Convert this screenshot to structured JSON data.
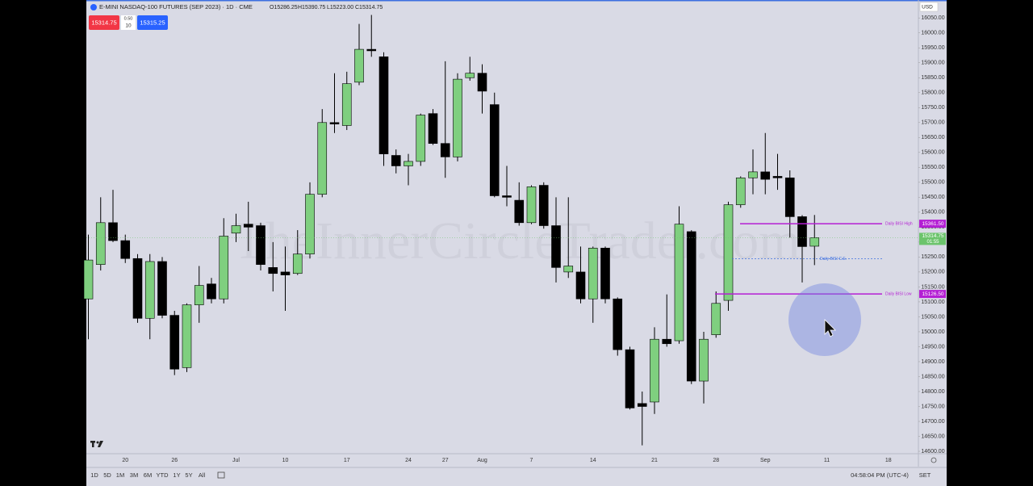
{
  "header": {
    "symbol": "E-MINI NASDAQ-100 FUTURES (SEP 2023) · 1D · CME",
    "ohlc": [
      "O15286.25",
      "H15390.75",
      "L15223.00",
      "C15314.75"
    ],
    "sell": "15314.75",
    "spread": "0.50",
    "qty": "10",
    "buy": "15315.25",
    "currency": "USD"
  },
  "watermark": "TheInnerCircleTrader.com",
  "toolbar": {
    "ranges": [
      "1D",
      "5D",
      "1M",
      "3M",
      "6M",
      "YTD",
      "1Y",
      "5Y",
      "All"
    ],
    "time": "04:58:04 PM (UTC-4)",
    "settings": "SET"
  },
  "chart_data": {
    "type": "candlestick",
    "categories": [
      null,
      null,
      null,
      "20",
      null,
      null,
      null,
      "26",
      null,
      null,
      null,
      null,
      "Jul",
      null,
      null,
      null,
      "10",
      null,
      null,
      null,
      null,
      "17",
      null,
      null,
      null,
      null,
      "24",
      null,
      null,
      "27",
      null,
      null,
      "Aug",
      null,
      null,
      null,
      "7",
      null,
      null,
      null,
      null,
      "14",
      null,
      null,
      null,
      null,
      "21",
      null,
      null,
      null,
      null,
      "28",
      null,
      null,
      null,
      "Sep",
      null,
      null,
      null,
      null,
      "11",
      null,
      null,
      null,
      null,
      "18"
    ],
    "open": [
      15110,
      15225,
      15365,
      15305,
      15245,
      15045,
      15235,
      15055,
      14880,
      15090,
      15160,
      15110,
      15330,
      15360,
      15355,
      15215,
      15200,
      15195,
      15260,
      15460,
      15700,
      15690,
      15835,
      15945,
      15920,
      15590,
      15555,
      15570,
      15730,
      15630,
      15585,
      15850,
      15865,
      15760,
      15455,
      15440,
      15365,
      15490,
      15355,
      15200,
      15200,
      15110,
      15280,
      15110,
      14940,
      14760,
      14765,
      14975,
      14970,
      15335,
      14835,
      14990,
      15105,
      15425,
      15515,
      15535,
      15520,
      15515,
      15385,
      15286.25,
      null,
      null,
      null,
      null,
      null,
      null
    ],
    "high": [
      15325,
      15450,
      15475,
      15325,
      15260,
      15260,
      15250,
      15070,
      15095,
      15220,
      15180,
      15380,
      15395,
      15435,
      15365,
      15300,
      15285,
      15340,
      15500,
      15745,
      15865,
      15870,
      16030,
      16060,
      15935,
      15610,
      15595,
      15730,
      15745,
      15905,
      15865,
      15920,
      15895,
      15800,
      15555,
      15500,
      15490,
      15500,
      15450,
      15450,
      15285,
      15285,
      15285,
      15115,
      14950,
      14800,
      15015,
      15125,
      15420,
      15340,
      15000,
      15135,
      15435,
      15520,
      15610,
      15665,
      15595,
      15540,
      15390,
      15390.75,
      null,
      null,
      null,
      null,
      null,
      null
    ],
    "low": [
      14975,
      15205,
      15300,
      15230,
      15030,
      14975,
      15045,
      14855,
      14865,
      15030,
      15095,
      15095,
      15300,
      15270,
      15205,
      15135,
      15070,
      15190,
      15245,
      15450,
      15665,
      15675,
      15825,
      15920,
      15555,
      15530,
      15490,
      15555,
      15625,
      15515,
      15570,
      15840,
      15730,
      15450,
      15420,
      15355,
      15360,
      15345,
      15165,
      15180,
      15095,
      15030,
      15095,
      14920,
      14740,
      14620,
      14725,
      14950,
      14960,
      14825,
      14760,
      14980,
      15070,
      15415,
      15460,
      15460,
      15475,
      15315,
      15165,
      15223,
      null,
      null,
      null,
      null,
      null,
      null
    ],
    "close": [
      15240,
      15365,
      15305,
      15245,
      15045,
      15235,
      15055,
      14875,
      15090,
      15155,
      15110,
      15320,
      15355,
      15350,
      15225,
      15195,
      15190,
      15260,
      15460,
      15700,
      15695,
      15830,
      15945,
      15940,
      15595,
      15555,
      15570,
      15725,
      15630,
      15585,
      15845,
      15865,
      15805,
      15455,
      15450,
      15365,
      15485,
      15355,
      15215,
      15220,
      15110,
      15280,
      15110,
      14940,
      14745,
      14750,
      14975,
      14960,
      15360,
      14835,
      14975,
      15095,
      15425,
      15515,
      15535,
      15510,
      15515,
      15385,
      15285,
      15314.75,
      null,
      null,
      null,
      null,
      null,
      null
    ],
    "up_color": "#7fcf7f",
    "down_color": "#000000",
    "ylim": [
      14592,
      16110
    ],
    "yticks": [
      {
        "value": 14600,
        "label": "14600.00"
      },
      {
        "value": 14650,
        "label": "14650.00"
      },
      {
        "value": 14700,
        "label": "14700.00"
      },
      {
        "value": 14750,
        "label": "14750.00"
      },
      {
        "value": 14800,
        "label": "14800.00"
      },
      {
        "value": 14850,
        "label": "14850.00"
      },
      {
        "value": 14900,
        "label": "14900.00"
      },
      {
        "value": 14950,
        "label": "14950.00"
      },
      {
        "value": 15000,
        "label": "15000.00"
      },
      {
        "value": 15050,
        "label": "15050.00"
      },
      {
        "value": 15100,
        "label": "15100.00"
      },
      {
        "value": 15150,
        "label": "15150.00"
      },
      {
        "value": 15200,
        "label": "15200.00"
      },
      {
        "value": 15250,
        "label": "15250.00"
      },
      {
        "value": 15300,
        "label": "15300.00"
      },
      {
        "value": 15350,
        "label": "15350.00"
      },
      {
        "value": 15400,
        "label": "15400.00"
      },
      {
        "value": 15450,
        "label": "15450.00"
      },
      {
        "value": 15500,
        "label": "15500.00"
      },
      {
        "value": 15550,
        "label": "15550.00"
      },
      {
        "value": 15600,
        "label": "15600.00"
      },
      {
        "value": 15650,
        "label": "15650.00"
      },
      {
        "value": 15700,
        "label": "15700.00"
      },
      {
        "value": 15750,
        "label": "15750.00"
      },
      {
        "value": 15800,
        "label": "15800.00"
      },
      {
        "value": 15850,
        "label": "15850.00"
      },
      {
        "value": 15900,
        "label": "15900.00"
      },
      {
        "value": 15950,
        "label": "15950.00"
      },
      {
        "value": 16000,
        "label": "16000.00"
      },
      {
        "value": 16050,
        "label": "16050.00"
      }
    ],
    "grid": false,
    "last_price": 15314.75,
    "countdown": "01:55",
    "last_color": "#6cc46c",
    "levels": [
      {
        "name": "Daily BISI High",
        "value": 15361.5,
        "label": "15361.50",
        "color": "#b41fd4",
        "style": "solid"
      },
      {
        "name": "Daily BISI C.E.",
        "value": 15244,
        "color": "#3d6fe0",
        "style": "dashed"
      },
      {
        "name": "Daily BISI Low",
        "value": 15126.5,
        "label": "15126.50",
        "color": "#b41fd4",
        "style": "solid"
      }
    ]
  }
}
